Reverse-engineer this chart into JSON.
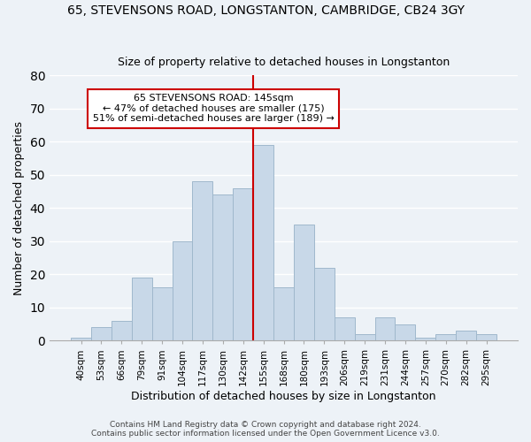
{
  "title1": "65, STEVENSONS ROAD, LONGSTANTON, CAMBRIDGE, CB24 3GY",
  "title2": "Size of property relative to detached houses in Longstanton",
  "xlabel": "Distribution of detached houses by size in Longstanton",
  "ylabel": "Number of detached properties",
  "footer1": "Contains HM Land Registry data © Crown copyright and database right 2024.",
  "footer2": "Contains public sector information licensed under the Open Government Licence v3.0.",
  "bin_labels": [
    "40sqm",
    "53sqm",
    "66sqm",
    "79sqm",
    "91sqm",
    "104sqm",
    "117sqm",
    "130sqm",
    "142sqm",
    "155sqm",
    "168sqm",
    "180sqm",
    "193sqm",
    "206sqm",
    "219sqm",
    "231sqm",
    "244sqm",
    "257sqm",
    "270sqm",
    "282sqm",
    "295sqm"
  ],
  "bar_heights": [
    1,
    4,
    6,
    19,
    16,
    30,
    48,
    44,
    46,
    59,
    16,
    35,
    22,
    7,
    2,
    7,
    5,
    1,
    2,
    3,
    2
  ],
  "bar_color": "#c8d8e8",
  "bar_edge_color": "#a0b8cc",
  "vline_label_index": 8,
  "vline_color": "#cc0000",
  "annotation_title": "65 STEVENSONS ROAD: 145sqm",
  "annotation_line1": "← 47% of detached houses are smaller (175)",
  "annotation_line2": "51% of semi-detached houses are larger (189) →",
  "annotation_box_color": "#ffffff",
  "annotation_box_edge_color": "#cc0000",
  "ylim": [
    0,
    80
  ],
  "yticks": [
    0,
    10,
    20,
    30,
    40,
    50,
    60,
    70,
    80
  ],
  "background_color": "#edf2f7",
  "grid_color": "#ffffff"
}
